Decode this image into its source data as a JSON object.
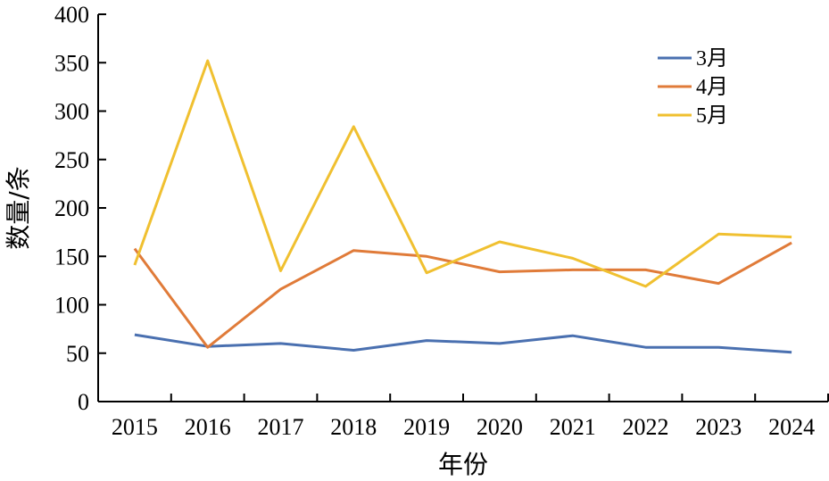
{
  "chart_data": {
    "type": "line",
    "categories": [
      "2015",
      "2016",
      "2017",
      "2018",
      "2019",
      "2020",
      "2021",
      "2022",
      "2023",
      "2024"
    ],
    "series": [
      {
        "name": "3月",
        "color": "#4a70b0",
        "values": [
          69,
          57,
          60,
          53,
          63,
          60,
          68,
          56,
          56,
          51
        ]
      },
      {
        "name": "4月",
        "color": "#e07b39",
        "values": [
          158,
          56,
          116,
          156,
          150,
          134,
          136,
          136,
          122,
          164
        ]
      },
      {
        "name": "5月",
        "color": "#f0c030",
        "values": [
          141,
          352,
          135,
          284,
          133,
          165,
          148,
          119,
          173,
          170
        ]
      }
    ],
    "xlabel": "年份",
    "ylabel": "数量/条",
    "ylim": [
      0,
      400
    ],
    "yticks": [
      0,
      50,
      100,
      150,
      200,
      250,
      300,
      350,
      400
    ],
    "grid": false,
    "legend_position": "top-right"
  }
}
